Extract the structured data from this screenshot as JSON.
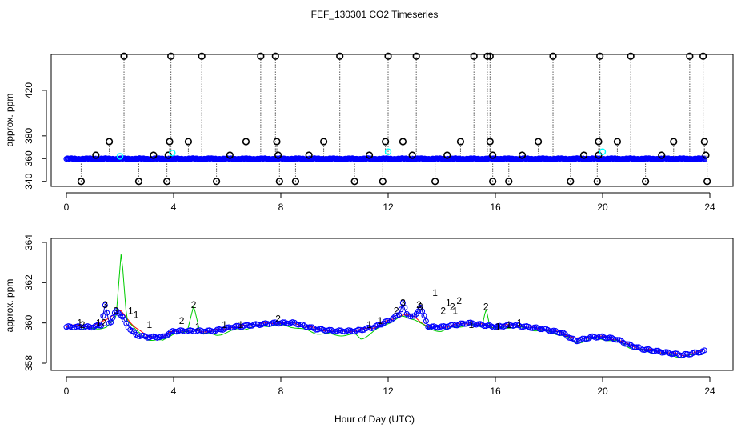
{
  "title": "FEF_130301  CO2 Timeseries",
  "xlabel": "Hour of Day (UTC)",
  "colors": {
    "series1": "#ff0000",
    "series2": "#00cc00",
    "series3": "#0000cc",
    "circle": "#0000ff",
    "flag": "#000000",
    "cyan": "#00ffff"
  },
  "chart_data": [
    {
      "type": "scatter",
      "panel": "top",
      "ylabel": "approx. ppm",
      "xlim": [
        0,
        24
      ],
      "ylim": [
        337,
        453
      ],
      "xticks": [
        0,
        4,
        8,
        12,
        16,
        20,
        24
      ],
      "yticks": [
        340,
        360,
        380,
        420
      ],
      "baseline_level": 359.8,
      "flagged_high": [
        2.15,
        3.9,
        5.05,
        7.25,
        7.8,
        10.2,
        12.0,
        13.05,
        15.2,
        15.7,
        15.8,
        18.15,
        19.9,
        21.05,
        23.25,
        23.75
      ],
      "flagged_mid": [
        1.6,
        3.85,
        4.55,
        6.7,
        7.85,
        9.6,
        11.9,
        12.55,
        14.7,
        15.8,
        17.6,
        19.85,
        20.55,
        22.65,
        23.8
      ],
      "flagged_low_step": [
        1.1,
        3.25,
        3.8,
        6.1,
        7.9,
        9.05,
        11.3,
        12.9,
        14.2,
        15.9,
        17.0,
        19.3,
        19.85,
        22.2,
        23.85
      ],
      "flagged_bottom": [
        0.55,
        2.7,
        3.75,
        5.6,
        7.95,
        8.55,
        10.75,
        11.8,
        13.75,
        15.9,
        16.5,
        18.8,
        19.8,
        21.6,
        23.9
      ],
      "high_value": 450,
      "mid_value": 375,
      "low_step_value": 363,
      "bottom_value": 340,
      "cyan_markers": [
        {
          "x": 2.0,
          "y": 362
        },
        {
          "x": 3.95,
          "y": 365
        },
        {
          "x": 12.0,
          "y": 366
        },
        {
          "x": 20.0,
          "y": 366
        }
      ]
    },
    {
      "type": "line",
      "panel": "bottom",
      "ylabel": "approx. ppm",
      "xlim": [
        0,
        24
      ],
      "ylim": [
        358,
        364
      ],
      "xticks": [
        0,
        4,
        8,
        12,
        16,
        20,
        24
      ],
      "yticks": [
        358,
        360,
        362,
        364
      ],
      "series": [
        {
          "name": "1",
          "anchors": [
            [
              0,
              359.8
            ],
            [
              0.5,
              359.9
            ],
            [
              1.0,
              359.8
            ],
            [
              1.6,
              360.3
            ],
            [
              2.0,
              360.6
            ],
            [
              2.5,
              359.9
            ],
            [
              3.0,
              359.3
            ],
            [
              3.6,
              359.3
            ],
            [
              4.0,
              359.6
            ],
            [
              4.8,
              359.6
            ],
            [
              5.5,
              359.6
            ],
            [
              6.2,
              359.8
            ],
            [
              7.0,
              359.9
            ],
            [
              7.8,
              360.0
            ],
            [
              8.5,
              360.0
            ],
            [
              9.3,
              359.7
            ],
            [
              10.0,
              359.6
            ],
            [
              10.8,
              359.6
            ],
            [
              11.5,
              359.8
            ],
            [
              12.0,
              360.1
            ],
            [
              12.5,
              360.4
            ],
            [
              13.0,
              360.3
            ],
            [
              13.5,
              359.8
            ],
            [
              14.0,
              359.8
            ],
            [
              14.5,
              359.9
            ],
            [
              15.0,
              360.0
            ],
            [
              15.5,
              359.9
            ],
            [
              16.0,
              359.8
            ],
            [
              16.6,
              359.9
            ],
            [
              17.2,
              359.8
            ],
            [
              17.8,
              359.7
            ],
            [
              18.5,
              359.5
            ],
            [
              19.0,
              359.2
            ],
            [
              19.6,
              359.3
            ],
            [
              20.0,
              359.3
            ],
            [
              20.5,
              359.2
            ],
            [
              21.0,
              358.9
            ],
            [
              21.5,
              358.7
            ],
            [
              22.0,
              358.6
            ],
            [
              22.5,
              358.5
            ],
            [
              23.0,
              358.4
            ],
            [
              23.8,
              358.6
            ]
          ],
          "spikes": [
            [
              0.5,
              360.0
            ],
            [
              1.2,
              360.0
            ],
            [
              2.4,
              360.6
            ],
            [
              2.6,
              360.4
            ],
            [
              3.1,
              359.9
            ],
            [
              4.9,
              359.8
            ],
            [
              5.9,
              359.9
            ],
            [
              6.5,
              359.9
            ],
            [
              11.3,
              359.9
            ],
            [
              11.7,
              360.1
            ],
            [
              13.75,
              361.5
            ],
            [
              14.25,
              361.0
            ],
            [
              14.5,
              360.6
            ],
            [
              15.1,
              359.9
            ],
            [
              16.1,
              359.8
            ],
            [
              16.5,
              359.9
            ],
            [
              16.9,
              360.0
            ]
          ]
        },
        {
          "name": "2",
          "anchors": [
            [
              0,
              359.7
            ],
            [
              0.5,
              359.7
            ],
            [
              1.0,
              359.7
            ],
            [
              1.5,
              359.8
            ],
            [
              1.85,
              360.2
            ],
            [
              2.05,
              363.6
            ],
            [
              2.25,
              360.2
            ],
            [
              2.6,
              359.6
            ],
            [
              3.0,
              359.2
            ],
            [
              3.6,
              359.1
            ],
            [
              4.0,
              359.5
            ],
            [
              4.5,
              359.5
            ],
            [
              4.75,
              360.9
            ],
            [
              5.0,
              359.5
            ],
            [
              5.6,
              359.4
            ],
            [
              6.2,
              359.6
            ],
            [
              7.0,
              359.8
            ],
            [
              7.8,
              359.9
            ],
            [
              8.5,
              359.8
            ],
            [
              9.3,
              359.5
            ],
            [
              10.0,
              359.4
            ],
            [
              10.8,
              359.4
            ],
            [
              11.0,
              359.2
            ],
            [
              11.5,
              359.6
            ],
            [
              12.0,
              360.0
            ],
            [
              12.5,
              360.3
            ],
            [
              13.0,
              360.2
            ],
            [
              13.5,
              359.7
            ],
            [
              14.0,
              359.6
            ],
            [
              14.5,
              359.8
            ],
            [
              15.0,
              359.9
            ],
            [
              15.5,
              359.8
            ],
            [
              15.65,
              360.8
            ],
            [
              15.8,
              359.8
            ],
            [
              16.0,
              359.7
            ],
            [
              16.6,
              359.8
            ],
            [
              17.2,
              359.7
            ],
            [
              17.8,
              359.6
            ],
            [
              18.5,
              359.4
            ],
            [
              19.0,
              359.0
            ],
            [
              19.6,
              359.2
            ],
            [
              20.0,
              359.2
            ],
            [
              20.5,
              359.1
            ],
            [
              21.0,
              358.8
            ],
            [
              21.5,
              358.6
            ],
            [
              22.0,
              358.5
            ],
            [
              22.5,
              358.4
            ],
            [
              23.0,
              358.3
            ],
            [
              23.8,
              358.5
            ]
          ],
          "spikes": [
            [
              0.6,
              359.9
            ],
            [
              1.4,
              360.0
            ],
            [
              4.3,
              360.1
            ],
            [
              4.75,
              360.9
            ],
            [
              7.9,
              360.2
            ],
            [
              12.3,
              360.6
            ],
            [
              13.15,
              360.9
            ],
            [
              14.05,
              360.6
            ],
            [
              14.4,
              360.8
            ],
            [
              14.65,
              361.1
            ],
            [
              15.65,
              360.8
            ]
          ]
        },
        {
          "name": "3",
          "anchors": [
            [
              0,
              359.8
            ],
            [
              0.5,
              359.8
            ],
            [
              1.0,
              359.8
            ],
            [
              1.3,
              359.9
            ],
            [
              1.45,
              360.9
            ],
            [
              1.6,
              359.9
            ],
            [
              1.85,
              360.6
            ],
            [
              2.05,
              360.4
            ],
            [
              2.3,
              359.8
            ],
            [
              2.6,
              359.4
            ],
            [
              3.0,
              359.3
            ],
            [
              3.6,
              359.3
            ],
            [
              4.0,
              359.6
            ],
            [
              4.8,
              359.6
            ],
            [
              5.5,
              359.6
            ],
            [
              6.2,
              359.8
            ],
            [
              7.0,
              359.9
            ],
            [
              7.8,
              360.0
            ],
            [
              8.5,
              360.0
            ],
            [
              9.3,
              359.7
            ],
            [
              10.0,
              359.6
            ],
            [
              10.8,
              359.6
            ],
            [
              11.5,
              359.8
            ],
            [
              12.0,
              360.1
            ],
            [
              12.4,
              360.4
            ],
            [
              12.55,
              361.0
            ],
            [
              12.7,
              360.4
            ],
            [
              13.0,
              360.3
            ],
            [
              13.2,
              360.8
            ],
            [
              13.5,
              359.8
            ],
            [
              14.0,
              359.8
            ],
            [
              14.5,
              359.9
            ],
            [
              15.0,
              360.0
            ],
            [
              15.5,
              359.9
            ],
            [
              16.0,
              359.8
            ],
            [
              16.6,
              359.9
            ],
            [
              17.2,
              359.8
            ],
            [
              17.8,
              359.7
            ],
            [
              18.5,
              359.5
            ],
            [
              19.0,
              359.1
            ],
            [
              19.6,
              359.3
            ],
            [
              20.0,
              359.3
            ],
            [
              20.5,
              359.2
            ],
            [
              21.0,
              358.9
            ],
            [
              21.5,
              358.7
            ],
            [
              22.0,
              358.6
            ],
            [
              22.5,
              358.5
            ],
            [
              23.0,
              358.4
            ],
            [
              23.8,
              358.6
            ]
          ],
          "spikes": [
            [
              1.45,
              360.9
            ],
            [
              1.85,
              360.6
            ],
            [
              12.55,
              361.0
            ],
            [
              13.2,
              360.8
            ]
          ]
        }
      ]
    }
  ]
}
